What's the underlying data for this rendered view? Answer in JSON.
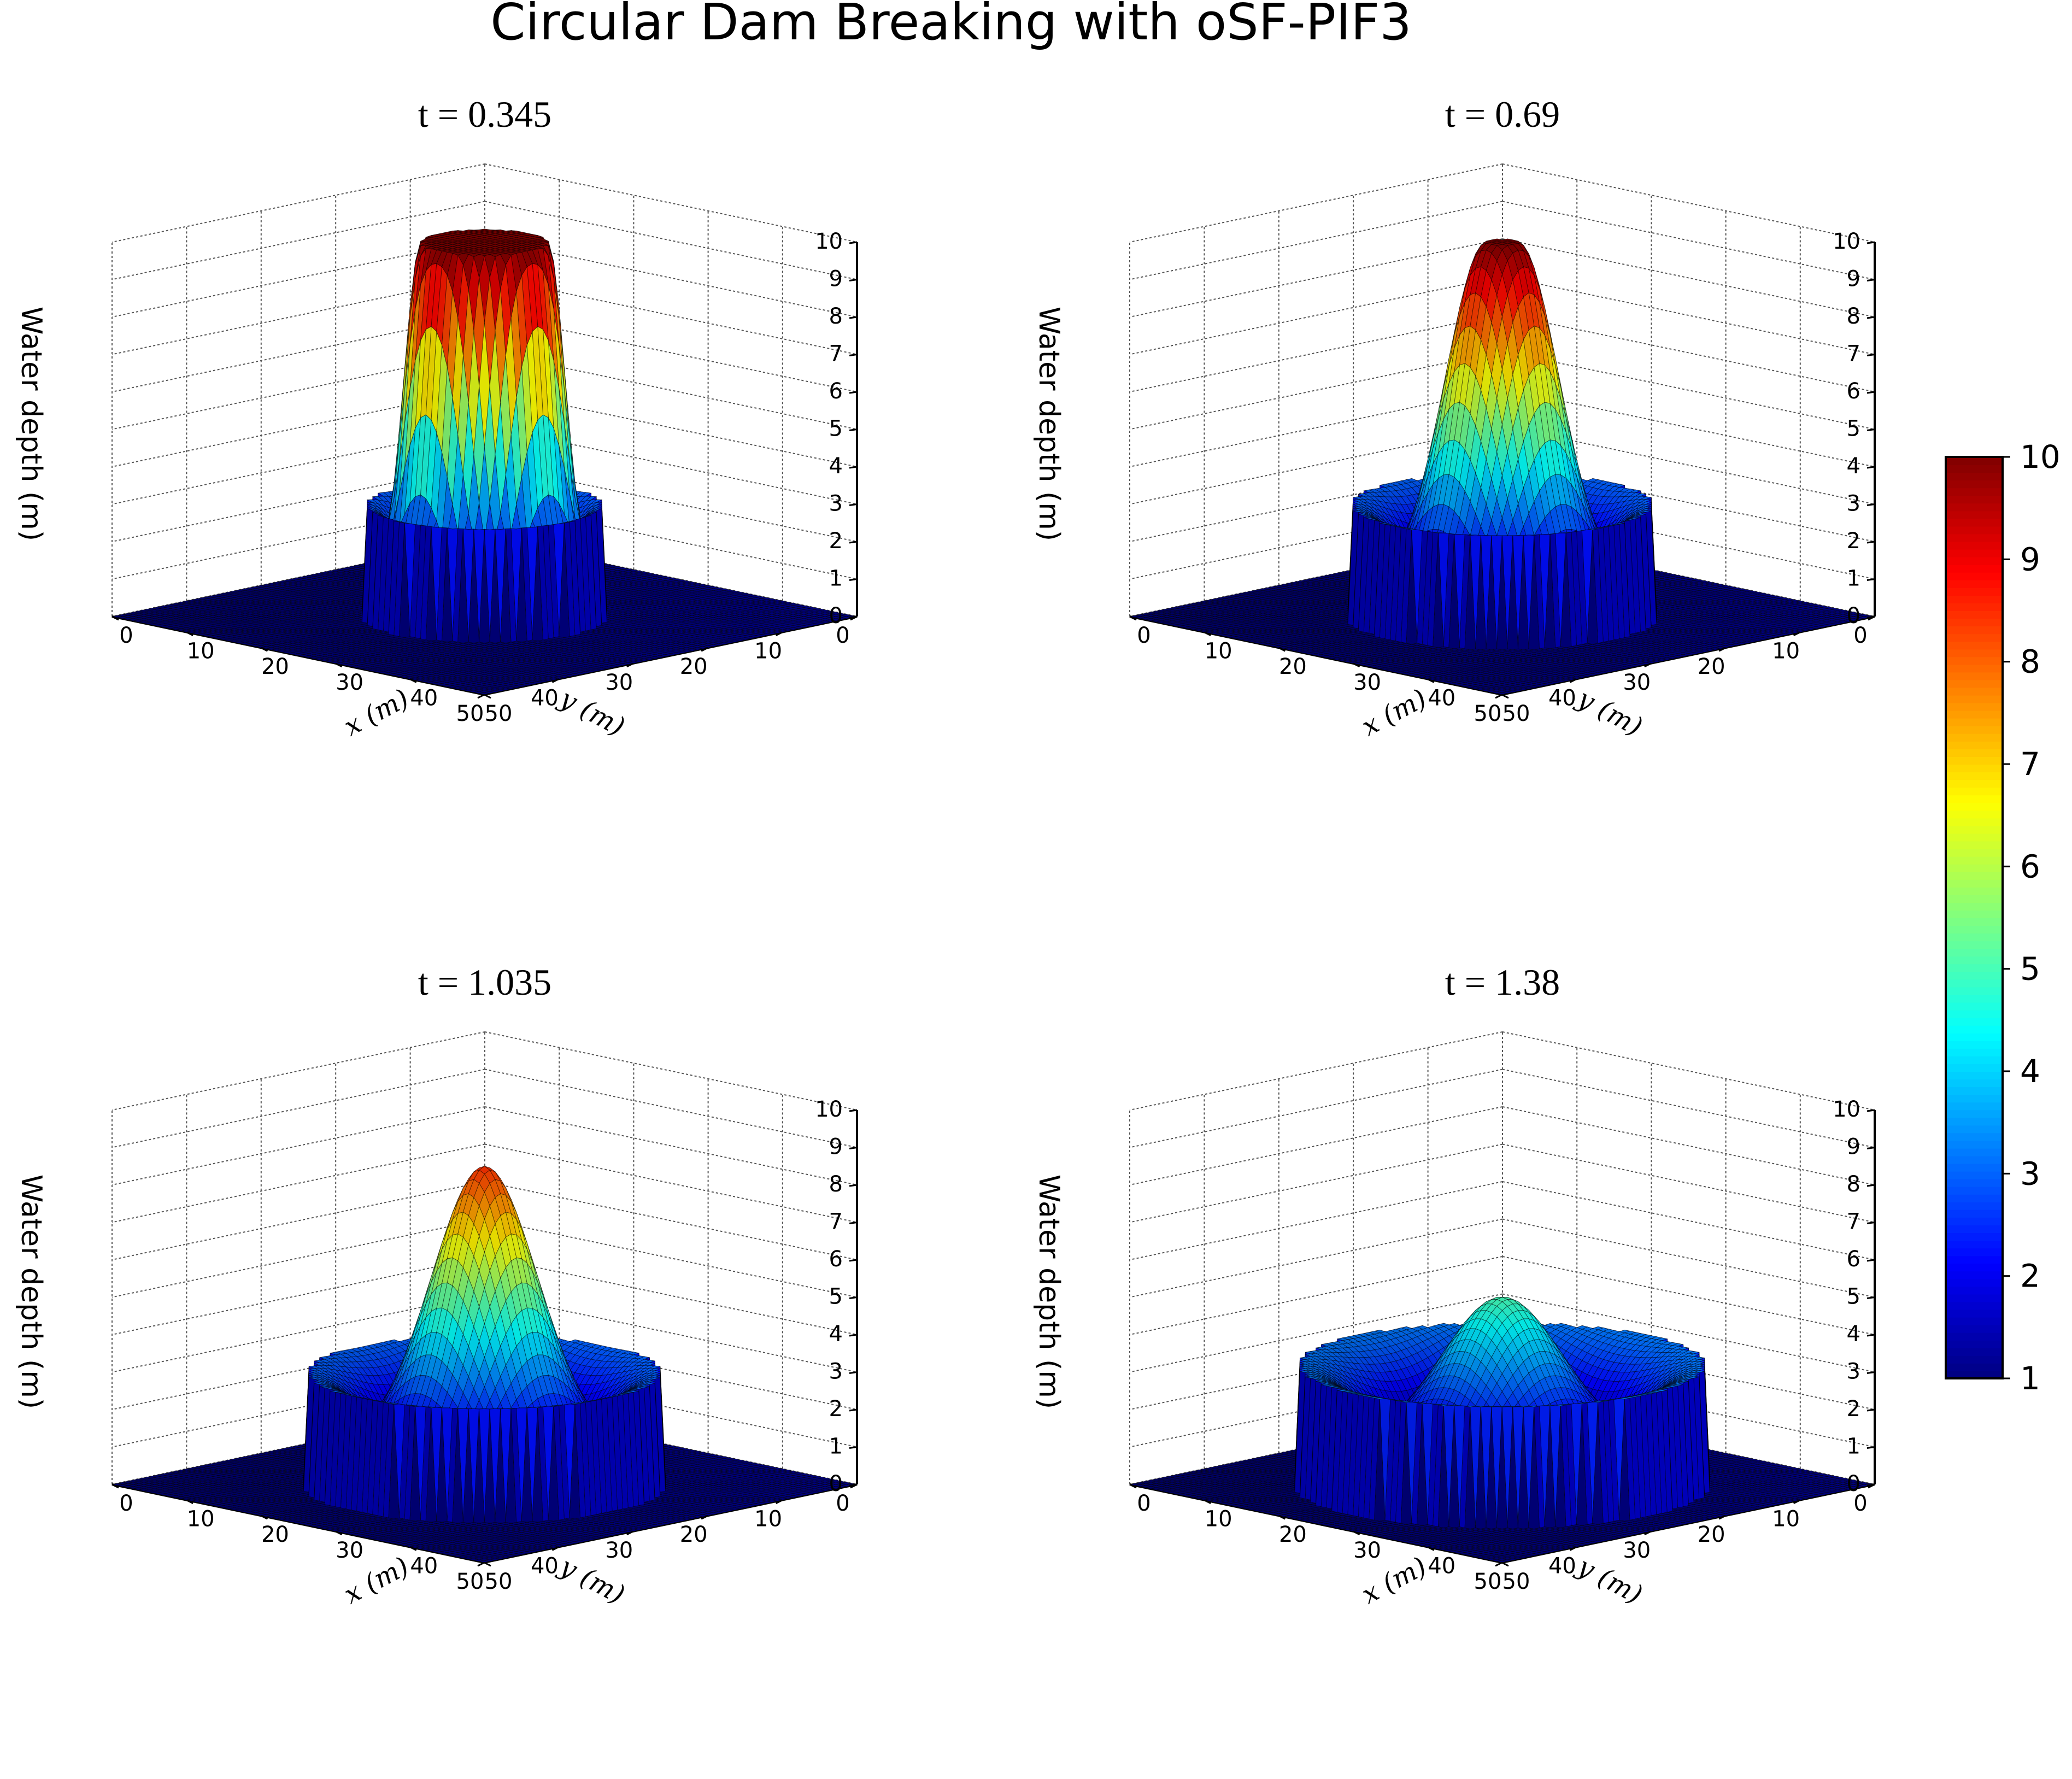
{
  "figure": {
    "title": "Circular Dam Breaking with oSF-PIF3"
  },
  "chart_data": [
    {
      "type": "surface3d",
      "title": "t = 0.345",
      "title_var": "t",
      "title_value": "0.345",
      "xlabel": "x (m)",
      "ylabel": "y (m)",
      "zlabel": "Water depth (m)",
      "xlim": [
        0,
        50
      ],
      "ylim": [
        0,
        50
      ],
      "zlim": [
        0,
        10
      ],
      "xticks": [
        0,
        10,
        20,
        30,
        40,
        50
      ],
      "yticks": [
        0,
        10,
        20,
        30,
        40,
        50
      ],
      "zticks": [
        0,
        1,
        2,
        3,
        4,
        5,
        6,
        7,
        8,
        9,
        10
      ],
      "base_depth": 1,
      "peak_depth": 10.0,
      "central_plateau_radius": 6,
      "bore_front_radius": 11.5,
      "bore_height": 3.0
    },
    {
      "type": "surface3d",
      "title": "t = 0.69",
      "title_var": "t",
      "title_value": "0.69",
      "xlabel": "x (m)",
      "ylabel": "y (m)",
      "zlabel": "Water depth (m)",
      "xlim": [
        0,
        50
      ],
      "ylim": [
        0,
        50
      ],
      "zlim": [
        0,
        10
      ],
      "xticks": [
        0,
        10,
        20,
        30,
        40,
        50
      ],
      "yticks": [
        0,
        10,
        20,
        30,
        40,
        50
      ],
      "zticks": [
        0,
        1,
        2,
        3,
        4,
        5,
        6,
        7,
        8,
        9,
        10
      ],
      "base_depth": 1,
      "peak_depth": 10.0,
      "central_plateau_radius": 1.5,
      "bore_front_radius": 14.5,
      "bore_height": 3.0
    },
    {
      "type": "surface3d",
      "title": "t = 1.035",
      "title_var": "t",
      "title_value": "1.035",
      "xlabel": "x (m)",
      "ylabel": "y (m)",
      "zlabel": "Water depth (m)",
      "xlim": [
        0,
        50
      ],
      "ylim": [
        0,
        50
      ],
      "zlim": [
        0,
        10
      ],
      "xticks": [
        0,
        10,
        20,
        30,
        40,
        50
      ],
      "yticks": [
        0,
        10,
        20,
        30,
        40,
        50
      ],
      "zticks": [
        0,
        1,
        2,
        3,
        4,
        5,
        6,
        7,
        8,
        9,
        10
      ],
      "base_depth": 1,
      "peak_depth": 8.5,
      "central_plateau_radius": 0,
      "bore_front_radius": 17,
      "bore_height": 3.0
    },
    {
      "type": "surface3d",
      "title": "t = 1.38",
      "title_var": "t",
      "title_value": "1.38",
      "xlabel": "x (m)",
      "ylabel": "y (m)",
      "zlabel": "Water depth (m)",
      "xlim": [
        0,
        50
      ],
      "ylim": [
        0,
        50
      ],
      "zlim": [
        0,
        10
      ],
      "xticks": [
        0,
        10,
        20,
        30,
        40,
        50
      ],
      "yticks": [
        0,
        10,
        20,
        30,
        40,
        50
      ],
      "zticks": [
        0,
        1,
        2,
        3,
        4,
        5,
        6,
        7,
        8,
        9,
        10
      ],
      "base_depth": 1,
      "peak_depth": 5.0,
      "central_plateau_radius": 0,
      "bore_front_radius": 19.5,
      "bore_height": 3.2
    }
  ],
  "colorbar": {
    "colormap": "jet",
    "min": 1,
    "max": 10,
    "ticks": [
      1,
      2,
      3,
      4,
      5,
      6,
      7,
      8,
      9,
      10
    ]
  },
  "colors": {
    "mesh_line": "#000000",
    "grid_line": "#555555",
    "background": "#ffffff"
  }
}
